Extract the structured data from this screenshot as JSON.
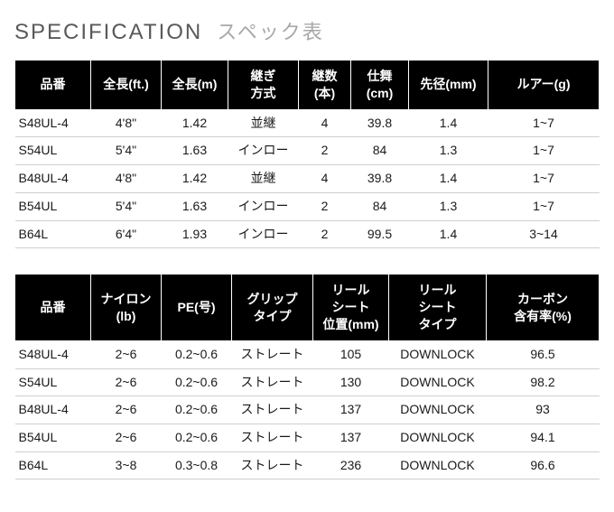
{
  "heading": {
    "en": "SPECIFICATION",
    "jp": "スペック表"
  },
  "table1": {
    "columns": [
      "品番",
      "全長(ft.)",
      "全長(m)",
      "継ぎ\n方式",
      "継数\n(本)",
      "仕舞\n(cm)",
      "先径(mm)",
      "ルアー(g)"
    ],
    "rows": [
      [
        "S48UL-4",
        "4'8\"",
        "1.42",
        "並継",
        "4",
        "39.8",
        "1.4",
        "1~7"
      ],
      [
        "S54UL",
        "5'4\"",
        "1.63",
        "インロー",
        "2",
        "84",
        "1.3",
        "1~7"
      ],
      [
        "B48UL-4",
        "4'8\"",
        "1.42",
        "並継",
        "4",
        "39.8",
        "1.4",
        "1~7"
      ],
      [
        "B54UL",
        "5'4\"",
        "1.63",
        "インロー",
        "2",
        "84",
        "1.3",
        "1~7"
      ],
      [
        "B64L",
        "6'4\"",
        "1.93",
        "インロー",
        "2",
        "99.5",
        "1.4",
        "3~14"
      ]
    ]
  },
  "table2": {
    "columns": [
      "品番",
      "ナイロン\n(lb)",
      "PE(号)",
      "グリップ\nタイプ",
      "リール\nシート\n位置(mm)",
      "リール\nシート\nタイプ",
      "カーボン\n含有率(%)"
    ],
    "rows": [
      [
        "S48UL-4",
        "2~6",
        "0.2~0.6",
        "ストレート",
        "105",
        "DOWNLOCK",
        "96.5"
      ],
      [
        "S54UL",
        "2~6",
        "0.2~0.6",
        "ストレート",
        "130",
        "DOWNLOCK",
        "98.2"
      ],
      [
        "B48UL-4",
        "2~6",
        "0.2~0.6",
        "ストレート",
        "137",
        "DOWNLOCK",
        "93"
      ],
      [
        "B54UL",
        "2~6",
        "0.2~0.6",
        "ストレート",
        "137",
        "DOWNLOCK",
        "94.1"
      ],
      [
        "B64L",
        "3~8",
        "0.3~0.8",
        "ストレート",
        "236",
        "DOWNLOCK",
        "96.6"
      ]
    ]
  },
  "style": {
    "header_bg": "#000000",
    "header_text": "#ffffff",
    "row_border": "#cfcfcf",
    "heading_en_color": "#595959",
    "heading_jp_color": "#a8a8a8",
    "body_text": "#1a1a1a",
    "font_family": "Hiragino Kaku Gothic Pro",
    "title_fontsize": 24,
    "table_fontsize": 14
  }
}
